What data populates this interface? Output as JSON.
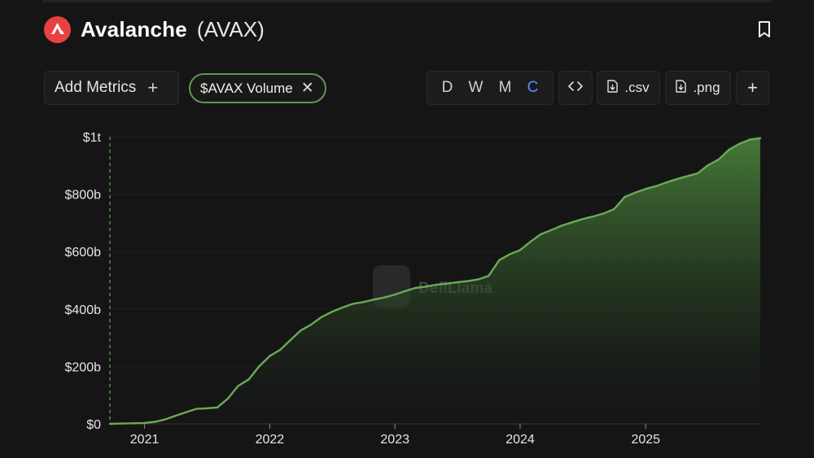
{
  "header": {
    "name": "Avalanche",
    "ticker": "(AVAX)",
    "brand_color": "#e84142"
  },
  "toolbar": {
    "add_metrics_label": "Add Metrics",
    "add_metrics_icon": "plus-icon",
    "metric_chip_label": "$AVAX Volume",
    "metric_chip_color": "#5c9a4f",
    "periods": [
      "D",
      "W",
      "M",
      "C"
    ],
    "active_period": "C",
    "active_color": "#5b8cff",
    "embed_icon": "code-icon",
    "csv_label": ".csv",
    "png_label": ".png",
    "more_icon": "plus-icon",
    "bookmark_icon": "bookmark-icon"
  },
  "watermark": "DefiLlama",
  "chart_data": {
    "type": "area",
    "title": "",
    "xlabel": "",
    "ylabel": "",
    "series": [
      {
        "name": "$AVAX Volume",
        "color": "#6aaa55",
        "x": [
          "2020-09-22",
          "2020-11-01",
          "2020-12-01",
          "2021-01-01",
          "2021-02-01",
          "2021-03-01",
          "2021-04-01",
          "2021-05-01",
          "2021-06-01",
          "2021-07-01",
          "2021-08-01",
          "2021-09-01",
          "2021-10-01",
          "2021-11-01",
          "2021-12-01",
          "2022-01-01",
          "2022-02-01",
          "2022-03-01",
          "2022-04-01",
          "2022-05-01",
          "2022-06-01",
          "2022-07-01",
          "2022-08-01",
          "2022-09-01",
          "2022-10-01",
          "2022-11-01",
          "2022-12-01",
          "2023-01-01",
          "2023-02-01",
          "2023-03-01",
          "2023-04-01",
          "2023-05-01",
          "2023-06-01",
          "2023-07-01",
          "2023-08-01",
          "2023-09-01",
          "2023-10-01",
          "2023-11-01",
          "2023-12-01",
          "2024-01-01",
          "2024-02-01",
          "2024-03-01",
          "2024-04-01",
          "2024-05-01",
          "2024-06-01",
          "2024-07-01",
          "2024-08-01",
          "2024-09-01",
          "2024-10-01",
          "2024-11-01",
          "2024-12-01",
          "2025-01-01",
          "2025-02-01",
          "2025-03-01",
          "2025-04-01",
          "2025-05-01",
          "2025-06-01",
          "2025-07-01",
          "2025-08-01",
          "2025-09-01",
          "2025-10-01",
          "2025-11-01",
          "2025-12-01"
        ],
        "values": [
          0,
          1,
          2,
          3,
          7,
          15,
          28,
          40,
          52,
          54,
          57,
          88,
          132,
          155,
          200,
          236,
          258,
          290,
          325,
          345,
          372,
          390,
          405,
          418,
          424,
          433,
          440,
          450,
          463,
          473,
          478,
          484,
          488,
          493,
          497,
          503,
          515,
          570,
          590,
          605,
          635,
          660,
          675,
          690,
          702,
          713,
          722,
          733,
          748,
          790,
          805,
          818,
          828,
          840,
          852,
          862,
          872,
          900,
          920,
          955,
          975,
          990,
          995
        ]
      }
    ],
    "y_unit": "billions USD",
    "ylim": [
      0,
      1000
    ],
    "y_ticks": [
      "$0",
      "$200b",
      "$400b",
      "$600b",
      "$800b",
      "$1t"
    ],
    "y_tick_values": [
      0,
      200,
      400,
      600,
      800,
      1000
    ],
    "x_ticks": [
      "2021",
      "2022",
      "2023",
      "2024",
      "2025"
    ],
    "x_tick_dates": [
      "2021-01-01",
      "2022-01-01",
      "2023-01-01",
      "2024-01-01",
      "2025-01-01"
    ],
    "x_range": [
      "2020-09-22",
      "2025-12-01"
    ],
    "grid": true,
    "legend": "none"
  }
}
